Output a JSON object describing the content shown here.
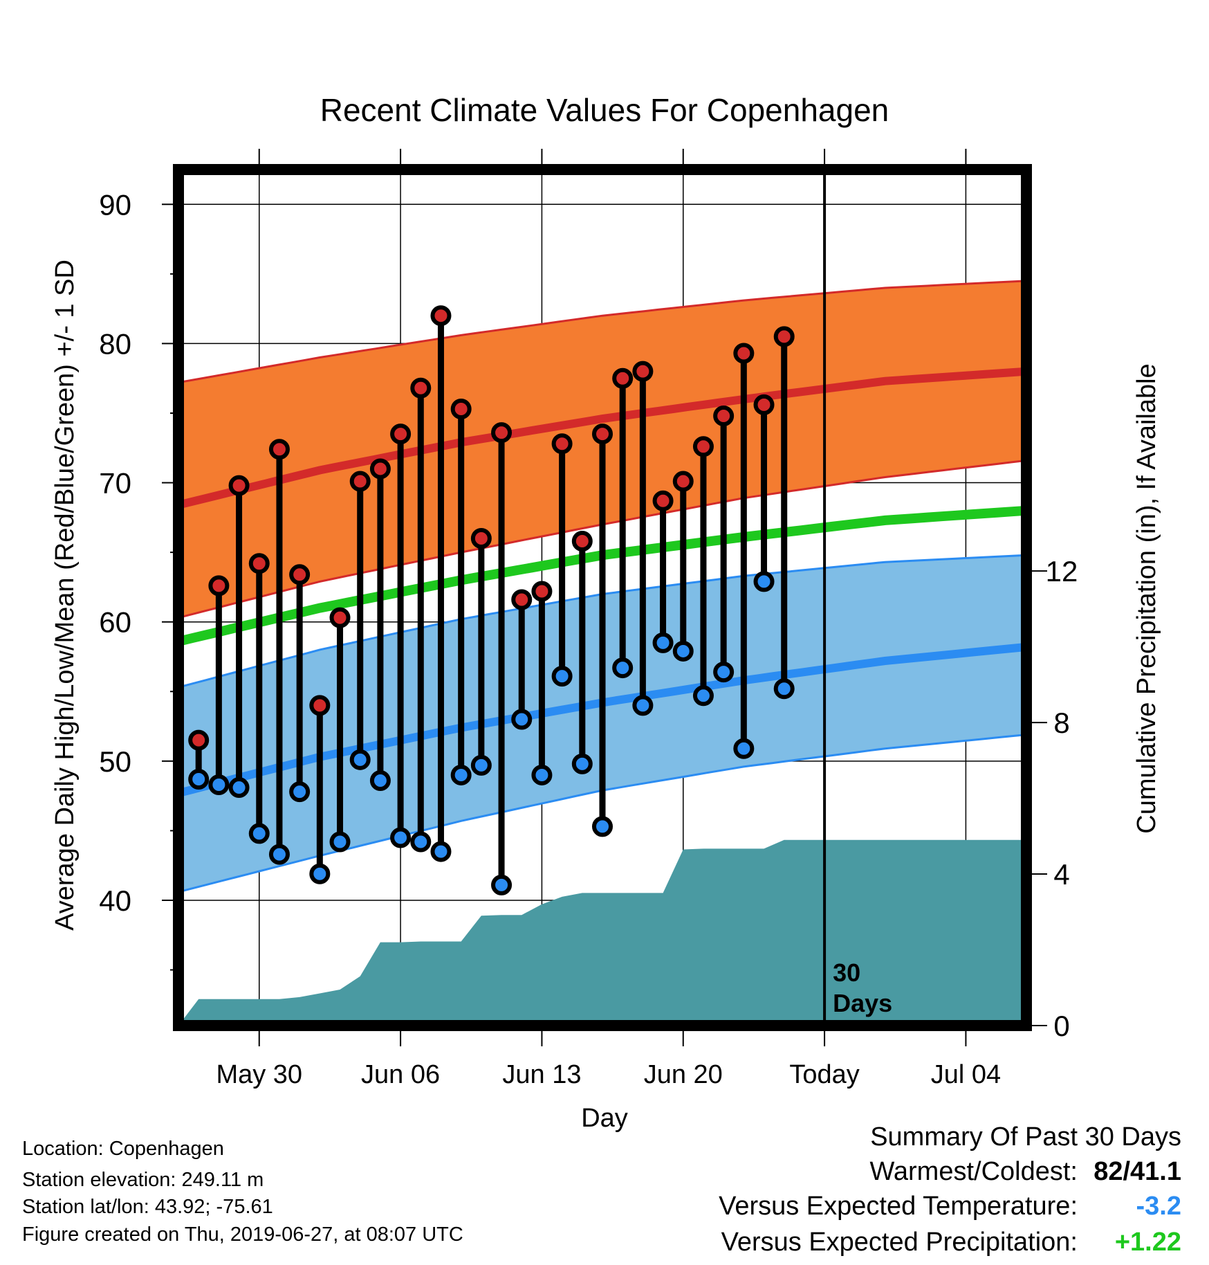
{
  "chart_data": {
    "type": "line",
    "title": "Recent Climate Values For Copenhagen",
    "xlabel": "Day",
    "ylabel": "Average Daily High/Low/Mean (Red/Blue/Green) +/- 1 SD",
    "y2label": "Cumulative Precipitation (in), If Available",
    "ylim": [
      31,
      92.5
    ],
    "y2lim": [
      0,
      22.6
    ],
    "yticks": [
      40,
      50,
      60,
      70,
      80,
      90
    ],
    "y2ticks": [
      0,
      4,
      8,
      12
    ],
    "x_start": "2019-05-26",
    "x_end": "2019-07-07",
    "xticks": [
      {
        "date": "2019-05-30",
        "label": "May 30"
      },
      {
        "date": "2019-06-06",
        "label": "Jun 06"
      },
      {
        "date": "2019-06-13",
        "label": "Jun 13"
      },
      {
        "date": "2019-06-20",
        "label": "Jun 20"
      },
      {
        "date": "2019-06-27",
        "label": "Today"
      },
      {
        "date": "2019-07-04",
        "label": "Jul 04"
      }
    ],
    "today": "2019-06-27",
    "today_annotation": [
      "30",
      "Days"
    ],
    "grid": true,
    "colors": {
      "high_band": "#f47c30",
      "high_mean": "#d32a2a",
      "low_band": "#7fbde6",
      "low_mean": "#2b8cf2",
      "mean": "#1ec81e",
      "precip": "#4a9aa2",
      "obs_high": "#d32a2a",
      "obs_low": "#2b8cf2"
    },
    "normals": {
      "dates": [
        "2019-05-26",
        "2019-06-02",
        "2019-06-09",
        "2019-06-16",
        "2019-06-23",
        "2019-06-30",
        "2019-07-07"
      ],
      "high_mean": [
        68.4,
        70.9,
        72.9,
        74.6,
        76.0,
        77.3,
        78.0
      ],
      "high_plus_sd": [
        77.2,
        79.0,
        80.6,
        82.0,
        83.1,
        84.0,
        84.5
      ],
      "high_minus_sd": [
        60.3,
        62.9,
        65.0,
        67.0,
        68.9,
        70.4,
        71.6
      ],
      "mean": [
        58.6,
        61.0,
        63.0,
        64.8,
        66.1,
        67.3,
        68.0
      ],
      "low_mean": [
        47.7,
        50.3,
        52.4,
        54.2,
        55.8,
        57.2,
        58.2
      ],
      "low_plus_sd": [
        55.3,
        58.0,
        60.2,
        62.0,
        63.3,
        64.3,
        64.8
      ],
      "low_minus_sd": [
        40.6,
        43.2,
        45.7,
        47.9,
        49.6,
        50.9,
        51.9
      ]
    },
    "observed": {
      "dates": [
        "2019-05-27",
        "2019-05-28",
        "2019-05-29",
        "2019-05-30",
        "2019-05-31",
        "2019-06-01",
        "2019-06-02",
        "2019-06-03",
        "2019-06-04",
        "2019-06-05",
        "2019-06-06",
        "2019-06-07",
        "2019-06-08",
        "2019-06-09",
        "2019-06-10",
        "2019-06-11",
        "2019-06-12",
        "2019-06-13",
        "2019-06-14",
        "2019-06-15",
        "2019-06-16",
        "2019-06-17",
        "2019-06-18",
        "2019-06-19",
        "2019-06-20",
        "2019-06-21",
        "2019-06-22",
        "2019-06-23",
        "2019-06-24",
        "2019-06-25",
        "2019-06-26"
      ],
      "high": [
        51.5,
        62.6,
        69.8,
        64.2,
        72.4,
        63.4,
        54.0,
        60.3,
        70.1,
        71.0,
        73.5,
        76.8,
        82.0,
        75.3,
        66.0,
        73.6,
        61.6,
        62.2,
        72.8,
        65.8,
        73.5,
        77.5,
        78.0,
        68.7,
        70.1,
        72.6,
        74.8,
        79.3,
        75.6,
        80.5,
        null
      ],
      "low": [
        48.7,
        48.3,
        48.1,
        44.8,
        43.3,
        47.8,
        41.9,
        44.2,
        50.1,
        48.6,
        44.5,
        44.2,
        43.5,
        49.0,
        49.7,
        41.1,
        53.0,
        49.0,
        56.1,
        49.8,
        45.3,
        56.7,
        54.0,
        58.5,
        57.9,
        54.7,
        56.4,
        50.9,
        62.9,
        55.2,
        null
      ]
    },
    "precip_cumulative": {
      "dates": [
        "2019-05-26",
        "2019-05-27",
        "2019-05-28",
        "2019-05-29",
        "2019-05-30",
        "2019-05-31",
        "2019-06-01",
        "2019-06-02",
        "2019-06-03",
        "2019-06-04",
        "2019-06-05",
        "2019-06-06",
        "2019-06-07",
        "2019-06-08",
        "2019-06-09",
        "2019-06-10",
        "2019-06-11",
        "2019-06-12",
        "2019-06-13",
        "2019-06-14",
        "2019-06-15",
        "2019-06-16",
        "2019-06-17",
        "2019-06-18",
        "2019-06-19",
        "2019-06-20",
        "2019-06-21",
        "2019-06-22",
        "2019-06-23",
        "2019-06-24",
        "2019-06-25",
        "2019-06-26",
        "2019-06-27",
        "2019-07-07"
      ],
      "values": [
        0.0,
        0.7,
        0.7,
        0.7,
        0.7,
        0.7,
        0.75,
        0.85,
        0.95,
        1.3,
        2.2,
        2.2,
        2.22,
        2.22,
        2.22,
        2.9,
        2.92,
        2.92,
        3.2,
        3.4,
        3.5,
        3.5,
        3.5,
        3.5,
        3.5,
        4.65,
        4.67,
        4.67,
        4.67,
        4.67,
        4.9,
        4.9,
        4.9,
        4.9
      ]
    }
  },
  "footer": {
    "location": "Location: Copenhagen",
    "elevation": "Station elevation: 249.11 m",
    "latlon": "Station lat/lon: 43.92; -75.61",
    "created": "Figure created on Thu, 2019-06-27, at 08:07 UTC"
  },
  "summary": {
    "heading": "Summary Of Past 30 Days",
    "warm_cold_label": "Warmest/Coldest:",
    "warm_cold_value": "82/41.1",
    "temp_label": "Versus Expected Temperature:",
    "temp_value": "-3.2",
    "temp_color": "#2b8cf2",
    "precip_label": "Versus Expected Precipitation:",
    "precip_value": "+1.22",
    "precip_color": "#1ec81e"
  }
}
